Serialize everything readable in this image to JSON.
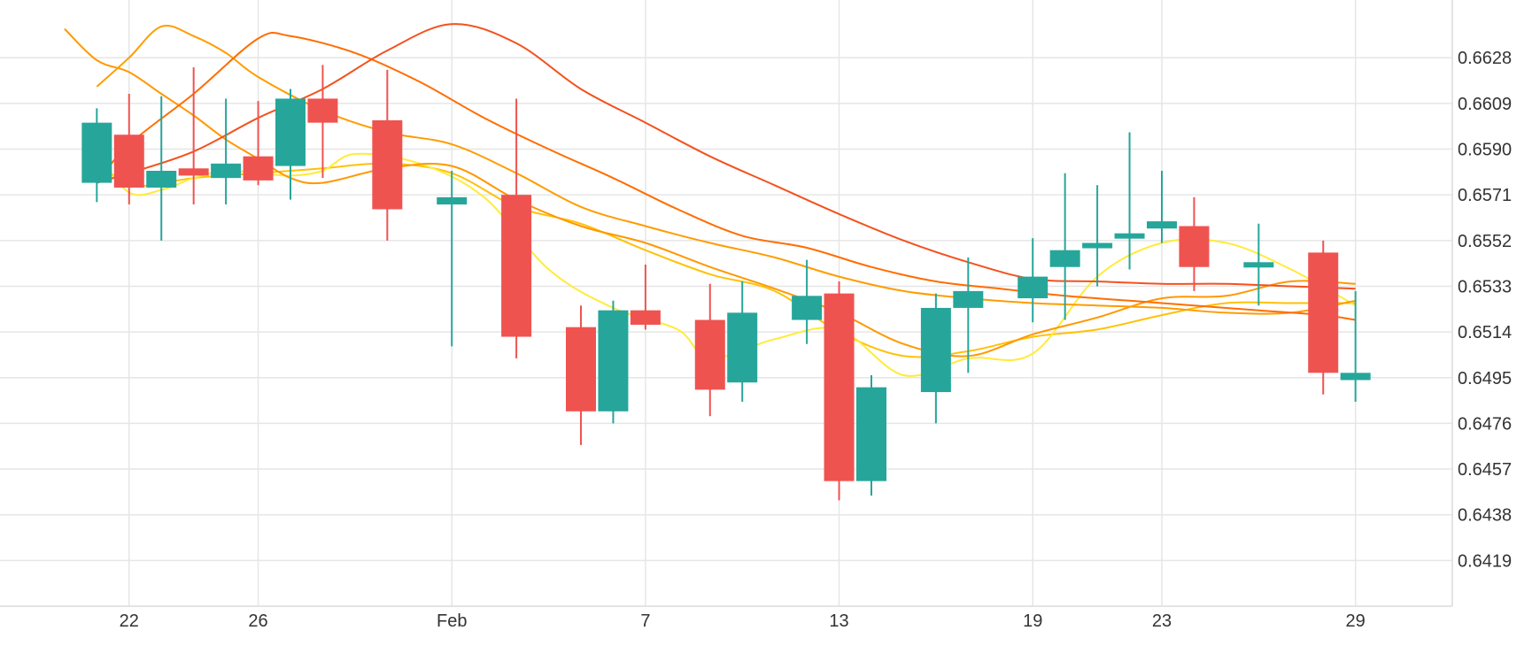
{
  "chart_data": {
    "type": "candlestick",
    "x_tick_labels": [
      {
        "label": "22",
        "date": "2024-01-22"
      },
      {
        "label": "26",
        "date": "2024-01-26"
      },
      {
        "label": "Feb",
        "date": "2024-02-01"
      },
      {
        "label": "7",
        "date": "2024-02-07"
      },
      {
        "label": "13",
        "date": "2024-02-13"
      },
      {
        "label": "19",
        "date": "2024-02-19"
      },
      {
        "label": "23",
        "date": "2024-02-23"
      },
      {
        "label": "29",
        "date": "2024-02-29"
      }
    ],
    "y_tick_labels": [
      "0.6628",
      "0.6609",
      "0.6590",
      "0.6571",
      "0.6552",
      "0.6533",
      "0.6514",
      "0.6495",
      "0.6476",
      "0.6457",
      "0.6438",
      "0.6419"
    ],
    "xlim": [
      "2024-01-18",
      "2024-03-03"
    ],
    "ylim": [
      0.64,
      0.6652
    ],
    "grid": true,
    "colors": {
      "up": "#26a69a",
      "down": "#ef5350",
      "grid": "#e6e6e6",
      "axis_text": "#333333"
    },
    "candles": [
      {
        "date": "2024-01-21",
        "open": 0.6576,
        "high": 0.6607,
        "low": 0.6568,
        "close": 0.6601
      },
      {
        "date": "2024-01-22",
        "open": 0.6596,
        "high": 0.6613,
        "low": 0.6567,
        "close": 0.6574
      },
      {
        "date": "2024-01-23",
        "open": 0.6574,
        "high": 0.6612,
        "low": 0.6552,
        "close": 0.6581
      },
      {
        "date": "2024-01-24",
        "open": 0.6582,
        "high": 0.6624,
        "low": 0.6567,
        "close": 0.6579
      },
      {
        "date": "2024-01-25",
        "open": 0.6578,
        "high": 0.6611,
        "low": 0.6567,
        "close": 0.6584
      },
      {
        "date": "2024-01-26",
        "open": 0.6587,
        "high": 0.661,
        "low": 0.6575,
        "close": 0.6577
      },
      {
        "date": "2024-01-27",
        "open": 0.6583,
        "high": 0.6615,
        "low": 0.6569,
        "close": 0.6611
      },
      {
        "date": "2024-01-28",
        "open": 0.6611,
        "high": 0.6625,
        "low": 0.6578,
        "close": 0.6601
      },
      {
        "date": "2024-01-30",
        "open": 0.6602,
        "high": 0.6623,
        "low": 0.6552,
        "close": 0.6565
      },
      {
        "date": "2024-02-01",
        "open": 0.6567,
        "high": 0.6581,
        "low": 0.6508,
        "close": 0.657
      },
      {
        "date": "2024-02-03",
        "open": 0.6571,
        "high": 0.6611,
        "low": 0.6503,
        "close": 0.6512
      },
      {
        "date": "2024-02-05",
        "open": 0.6516,
        "high": 0.6525,
        "low": 0.6467,
        "close": 0.6481
      },
      {
        "date": "2024-02-06",
        "open": 0.6481,
        "high": 0.6527,
        "low": 0.6476,
        "close": 0.6523
      },
      {
        "date": "2024-02-07",
        "open": 0.6523,
        "high": 0.6542,
        "low": 0.6515,
        "close": 0.6517
      },
      {
        "date": "2024-02-09",
        "open": 0.6519,
        "high": 0.6534,
        "low": 0.6479,
        "close": 0.649
      },
      {
        "date": "2024-02-10",
        "open": 0.6493,
        "high": 0.6535,
        "low": 0.6485,
        "close": 0.6522
      },
      {
        "date": "2024-02-12",
        "open": 0.6519,
        "high": 0.6544,
        "low": 0.6509,
        "close": 0.6529
      },
      {
        "date": "2024-02-13",
        "open": 0.653,
        "high": 0.6535,
        "low": 0.6444,
        "close": 0.6452
      },
      {
        "date": "2024-02-14",
        "open": 0.6452,
        "high": 0.6496,
        "low": 0.6446,
        "close": 0.6491
      },
      {
        "date": "2024-02-16",
        "open": 0.6489,
        "high": 0.653,
        "low": 0.6476,
        "close": 0.6524
      },
      {
        "date": "2024-02-17",
        "open": 0.6524,
        "high": 0.6545,
        "low": 0.6497,
        "close": 0.6531
      },
      {
        "date": "2024-02-19",
        "open": 0.6528,
        "high": 0.6553,
        "low": 0.6518,
        "close": 0.6537
      },
      {
        "date": "2024-02-20",
        "open": 0.6541,
        "high": 0.658,
        "low": 0.6519,
        "close": 0.6548
      },
      {
        "date": "2024-02-21",
        "open": 0.6549,
        "high": 0.6575,
        "low": 0.6533,
        "close": 0.6551
      },
      {
        "date": "2024-02-22",
        "open": 0.6553,
        "high": 0.6597,
        "low": 0.654,
        "close": 0.6555
      },
      {
        "date": "2024-02-23",
        "open": 0.6557,
        "high": 0.6581,
        "low": 0.6551,
        "close": 0.656
      },
      {
        "date": "2024-02-24",
        "open": 0.6558,
        "high": 0.657,
        "low": 0.6531,
        "close": 0.6541
      },
      {
        "date": "2024-02-26",
        "open": 0.6542,
        "high": 0.6559,
        "low": 0.6525,
        "close": 0.6543
      },
      {
        "date": "2024-02-28",
        "open": 0.6547,
        "high": 0.6552,
        "low": 0.6488,
        "close": 0.6497
      },
      {
        "date": "2024-02-29",
        "open": 0.6494,
        "high": 0.6531,
        "low": 0.6485,
        "close": 0.6497
      }
    ],
    "series": [
      {
        "color": "#ffc107",
        "points": [
          [
            "2024-01-21",
            0.6585
          ],
          [
            "2024-01-22",
            0.6575
          ],
          [
            "2024-01-23",
            0.6576
          ],
          [
            "2024-01-24",
            0.6578
          ],
          [
            "2024-01-25",
            0.6579
          ],
          [
            "2024-01-26",
            0.658
          ],
          [
            "2024-01-27",
            0.6581
          ],
          [
            "2024-01-28",
            0.6582
          ],
          [
            "2024-01-30",
            0.6584
          ],
          [
            "2024-02-01",
            0.658
          ],
          [
            "2024-02-03",
            0.6566
          ],
          [
            "2024-02-05",
            0.6559
          ],
          [
            "2024-02-07",
            0.6548
          ],
          [
            "2024-02-09",
            0.6538
          ],
          [
            "2024-02-11",
            0.6531
          ],
          [
            "2024-02-13",
            0.6514
          ],
          [
            "2024-02-15",
            0.6504
          ],
          [
            "2024-02-17",
            0.6506
          ],
          [
            "2024-02-19",
            0.6512
          ],
          [
            "2024-02-21",
            0.6515
          ],
          [
            "2024-02-23",
            0.6521
          ],
          [
            "2024-02-25",
            0.6526
          ],
          [
            "2024-02-27",
            0.6526
          ],
          [
            "2024-02-29",
            0.6526
          ]
        ]
      },
      {
        "color": "#ffeb3b",
        "points": [
          [
            "2024-01-21",
            0.6588
          ],
          [
            "2024-01-22",
            0.6572
          ],
          [
            "2024-01-23",
            0.6573
          ],
          [
            "2024-01-24",
            0.6578
          ],
          [
            "2024-01-25",
            0.6581
          ],
          [
            "2024-01-26",
            0.658
          ],
          [
            "2024-01-27",
            0.6579
          ],
          [
            "2024-01-28",
            0.6581
          ],
          [
            "2024-01-29",
            0.6588
          ],
          [
            "2024-01-31",
            0.6584
          ],
          [
            "2024-02-02",
            0.657
          ],
          [
            "2024-02-04",
            0.654
          ],
          [
            "2024-02-06",
            0.6524
          ],
          [
            "2024-02-08",
            0.6515
          ],
          [
            "2024-02-09",
            0.6503
          ],
          [
            "2024-02-11",
            0.6511
          ],
          [
            "2024-02-13",
            0.6515
          ],
          [
            "2024-02-15",
            0.6496
          ],
          [
            "2024-02-17",
            0.6503
          ],
          [
            "2024-02-19",
            0.6505
          ],
          [
            "2024-02-21",
            0.6537
          ],
          [
            "2024-02-23",
            0.6551
          ],
          [
            "2024-02-25",
            0.6551
          ],
          [
            "2024-02-27",
            0.654
          ],
          [
            "2024-02-29",
            0.6525
          ]
        ]
      },
      {
        "color": "#ff9800",
        "points": [
          [
            "2024-01-20",
            0.664
          ],
          [
            "2024-01-21",
            0.6627
          ],
          [
            "2024-01-22",
            0.6622
          ],
          [
            "2024-01-23",
            0.6613
          ],
          [
            "2024-01-24",
            0.6604
          ],
          [
            "2024-01-25",
            0.6594
          ],
          [
            "2024-01-26",
            0.6586
          ],
          [
            "2024-01-27",
            0.6578
          ],
          [
            "2024-01-28",
            0.6576
          ],
          [
            "2024-01-30",
            0.6582
          ],
          [
            "2024-02-01",
            0.6583
          ],
          [
            "2024-02-03",
            0.6569
          ],
          [
            "2024-02-05",
            0.6558
          ],
          [
            "2024-02-07",
            0.6551
          ],
          [
            "2024-02-09",
            0.6541
          ],
          [
            "2024-02-11",
            0.6532
          ],
          [
            "2024-02-13",
            0.6522
          ],
          [
            "2024-02-15",
            0.6509
          ],
          [
            "2024-02-17",
            0.6504
          ],
          [
            "2024-02-19",
            0.6513
          ],
          [
            "2024-02-21",
            0.652
          ],
          [
            "2024-02-23",
            0.6528
          ],
          [
            "2024-02-25",
            0.6529
          ],
          [
            "2024-02-27",
            0.6535
          ],
          [
            "2024-02-29",
            0.6534
          ]
        ]
      },
      {
        "color": "#ff9c00",
        "points": [
          [
            "2024-01-21",
            0.6616
          ],
          [
            "2024-01-22",
            0.6628
          ],
          [
            "2024-01-23",
            0.6641
          ],
          [
            "2024-01-24",
            0.6637
          ],
          [
            "2024-01-25",
            0.663
          ],
          [
            "2024-01-26",
            0.662
          ],
          [
            "2024-01-28",
            0.6606
          ],
          [
            "2024-01-30",
            0.6597
          ],
          [
            "2024-02-01",
            0.6592
          ],
          [
            "2024-02-03",
            0.658
          ],
          [
            "2024-02-05",
            0.6566
          ],
          [
            "2024-02-07",
            0.6558
          ],
          [
            "2024-02-09",
            0.6551
          ],
          [
            "2024-02-11",
            0.6545
          ],
          [
            "2024-02-13",
            0.6537
          ],
          [
            "2024-02-15",
            0.6531
          ],
          [
            "2024-02-17",
            0.6528
          ],
          [
            "2024-02-19",
            0.6526
          ],
          [
            "2024-02-21",
            0.6525
          ],
          [
            "2024-02-23",
            0.6524
          ],
          [
            "2024-02-25",
            0.6522
          ],
          [
            "2024-02-27",
            0.6522
          ],
          [
            "2024-02-29",
            0.6527
          ]
        ]
      },
      {
        "color": "#ff6d00",
        "points": [
          [
            "2024-01-21",
            0.6576
          ],
          [
            "2024-01-22",
            0.6592
          ],
          [
            "2024-01-24",
            0.6613
          ],
          [
            "2024-01-26",
            0.6636
          ],
          [
            "2024-01-27",
            0.6637
          ],
          [
            "2024-01-29",
            0.663
          ],
          [
            "2024-01-31",
            0.6618
          ],
          [
            "2024-02-02",
            0.6603
          ],
          [
            "2024-02-04",
            0.659
          ],
          [
            "2024-02-06",
            0.6578
          ],
          [
            "2024-02-08",
            0.6565
          ],
          [
            "2024-02-10",
            0.6554
          ],
          [
            "2024-02-12",
            0.6549
          ],
          [
            "2024-02-14",
            0.6541
          ],
          [
            "2024-02-16",
            0.6535
          ],
          [
            "2024-02-18",
            0.6532
          ],
          [
            "2024-02-20",
            0.6529
          ],
          [
            "2024-02-22",
            0.6527
          ],
          [
            "2024-02-24",
            0.6525
          ],
          [
            "2024-02-26",
            0.6523
          ],
          [
            "2024-02-28",
            0.6521
          ],
          [
            "2024-02-29",
            0.6519
          ]
        ]
      },
      {
        "color": "#f4511e",
        "points": [
          [
            "2024-01-21",
            0.6576
          ],
          [
            "2024-01-22",
            0.658
          ],
          [
            "2024-01-24",
            0.6589
          ],
          [
            "2024-01-26",
            0.6603
          ],
          [
            "2024-01-28",
            0.6615
          ],
          [
            "2024-01-30",
            0.6631
          ],
          [
            "2024-02-01",
            0.6642
          ],
          [
            "2024-02-03",
            0.6634
          ],
          [
            "2024-02-05",
            0.6615
          ],
          [
            "2024-02-07",
            0.6601
          ],
          [
            "2024-02-09",
            0.6587
          ],
          [
            "2024-02-11",
            0.6575
          ],
          [
            "2024-02-13",
            0.6563
          ],
          [
            "2024-02-15",
            0.6552
          ],
          [
            "2024-02-17",
            0.6543
          ],
          [
            "2024-02-19",
            0.6536
          ],
          [
            "2024-02-21",
            0.6535
          ],
          [
            "2024-02-23",
            0.6534
          ],
          [
            "2024-02-25",
            0.6534
          ],
          [
            "2024-02-27",
            0.6533
          ],
          [
            "2024-02-29",
            0.6532
          ]
        ]
      }
    ]
  }
}
